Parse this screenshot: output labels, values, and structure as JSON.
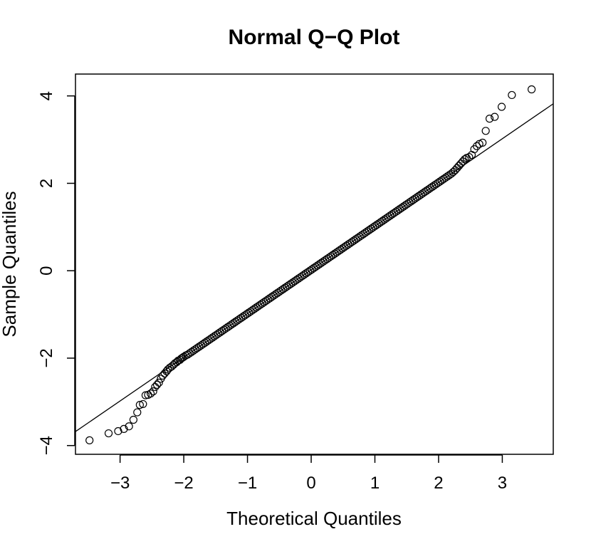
{
  "chart_data": {
    "type": "scatter",
    "title": "Normal Q−Q Plot",
    "xlabel": "Theoretical Quantiles",
    "ylabel": "Sample Quantiles",
    "xlim": [
      -3.7,
      3.8
    ],
    "ylim": [
      -4.2,
      4.5
    ],
    "xticks": [
      -3,
      -2,
      -1,
      0,
      1,
      2,
      3
    ],
    "yticks": [
      -4,
      -2,
      0,
      2,
      4
    ],
    "x_tick_labels": [
      "−3",
      "−2",
      "−1",
      "0",
      "1",
      "2",
      "3"
    ],
    "y_tick_labels": [
      "−4",
      "−2",
      "0",
      "2",
      "4"
    ],
    "grid": false,
    "reference_line": {
      "intercept": 0.02,
      "slope": 1.0
    },
    "marker": "open-circle",
    "series": [
      {
        "points": [
          [
            -3.48,
            -3.88
          ],
          [
            -3.18,
            -3.72
          ],
          [
            -3.03,
            -3.67
          ],
          [
            -2.94,
            -3.62
          ],
          [
            -2.86,
            -3.56
          ],
          [
            -2.79,
            -3.41
          ],
          [
            -2.73,
            -3.24
          ],
          [
            -2.69,
            -3.07
          ],
          [
            -2.64,
            -3.05
          ],
          [
            -2.6,
            -2.85
          ],
          [
            -2.56,
            -2.84
          ],
          [
            -2.52,
            -2.81
          ],
          [
            -2.48,
            -2.76
          ],
          [
            -2.45,
            -2.66
          ],
          [
            -2.42,
            -2.61
          ],
          [
            -2.39,
            -2.56
          ],
          [
            -2.36,
            -2.47
          ],
          [
            -2.33,
            -2.4
          ],
          [
            -2.3,
            -2.35
          ],
          [
            -2.27,
            -2.3
          ],
          [
            -2.25,
            -2.26
          ],
          [
            -2.22,
            -2.22
          ],
          [
            -2.19,
            -2.19
          ],
          [
            -2.16,
            -2.15
          ],
          [
            -2.14,
            -2.12
          ],
          [
            -2.11,
            -2.09
          ],
          [
            -2.09,
            -2.06
          ],
          [
            -2.06,
            -2.04
          ],
          [
            -2.04,
            -2.01
          ],
          [
            -2.02,
            -1.99
          ],
          [
            -2.0,
            -1.97
          ],
          [
            -1.97,
            -1.94
          ],
          [
            -1.94,
            -1.92
          ],
          [
            -1.91,
            -1.89
          ],
          [
            -1.88,
            -1.86
          ],
          [
            -1.85,
            -1.83
          ],
          [
            -1.82,
            -1.8
          ],
          [
            -1.79,
            -1.77
          ],
          [
            -1.76,
            -1.74
          ],
          [
            -1.73,
            -1.71
          ],
          [
            -1.7,
            -1.68
          ],
          [
            -1.67,
            -1.65
          ],
          [
            -1.64,
            -1.62
          ],
          [
            -1.61,
            -1.59
          ],
          [
            -1.58,
            -1.56
          ],
          [
            -1.55,
            -1.53
          ],
          [
            -1.52,
            -1.5
          ],
          [
            -1.49,
            -1.47
          ],
          [
            -1.46,
            -1.44
          ],
          [
            -1.43,
            -1.41
          ],
          [
            -1.4,
            -1.38
          ],
          [
            -1.37,
            -1.35
          ],
          [
            -1.34,
            -1.32
          ],
          [
            -1.31,
            -1.29
          ],
          [
            -1.28,
            -1.26
          ],
          [
            -1.25,
            -1.23
          ],
          [
            -1.22,
            -1.2
          ],
          [
            -1.19,
            -1.17
          ],
          [
            -1.16,
            -1.14
          ],
          [
            -1.13,
            -1.11
          ],
          [
            -1.1,
            -1.08
          ],
          [
            -1.07,
            -1.05
          ],
          [
            -1.04,
            -1.02
          ],
          [
            -1.01,
            -0.99
          ],
          [
            -0.98,
            -0.96
          ],
          [
            -0.95,
            -0.93
          ],
          [
            -0.92,
            -0.9
          ],
          [
            -0.89,
            -0.87
          ],
          [
            -0.86,
            -0.84
          ],
          [
            -0.83,
            -0.81
          ],
          [
            -0.8,
            -0.78
          ],
          [
            -0.77,
            -0.75
          ],
          [
            -0.74,
            -0.72
          ],
          [
            -0.71,
            -0.69
          ],
          [
            -0.68,
            -0.66
          ],
          [
            -0.65,
            -0.63
          ],
          [
            -0.62,
            -0.6
          ],
          [
            -0.59,
            -0.57
          ],
          [
            -0.56,
            -0.54
          ],
          [
            -0.53,
            -0.51
          ],
          [
            -0.5,
            -0.48
          ],
          [
            -0.47,
            -0.45
          ],
          [
            -0.44,
            -0.42
          ],
          [
            -0.41,
            -0.39
          ],
          [
            -0.38,
            -0.36
          ],
          [
            -0.35,
            -0.33
          ],
          [
            -0.32,
            -0.3
          ],
          [
            -0.29,
            -0.27
          ],
          [
            -0.26,
            -0.24
          ],
          [
            -0.23,
            -0.21
          ],
          [
            -0.2,
            -0.18
          ],
          [
            -0.17,
            -0.15
          ],
          [
            -0.14,
            -0.12
          ],
          [
            -0.11,
            -0.09
          ],
          [
            -0.08,
            -0.06
          ],
          [
            -0.05,
            -0.03
          ],
          [
            -0.02,
            0.0
          ],
          [
            0.01,
            0.03
          ],
          [
            0.04,
            0.06
          ],
          [
            0.07,
            0.09
          ],
          [
            0.1,
            0.12
          ],
          [
            0.13,
            0.15
          ],
          [
            0.16,
            0.18
          ],
          [
            0.19,
            0.21
          ],
          [
            0.22,
            0.24
          ],
          [
            0.25,
            0.27
          ],
          [
            0.28,
            0.3
          ],
          [
            0.31,
            0.33
          ],
          [
            0.34,
            0.36
          ],
          [
            0.37,
            0.39
          ],
          [
            0.4,
            0.42
          ],
          [
            0.43,
            0.45
          ],
          [
            0.46,
            0.48
          ],
          [
            0.49,
            0.51
          ],
          [
            0.52,
            0.54
          ],
          [
            0.55,
            0.57
          ],
          [
            0.58,
            0.6
          ],
          [
            0.61,
            0.63
          ],
          [
            0.64,
            0.66
          ],
          [
            0.67,
            0.69
          ],
          [
            0.7,
            0.72
          ],
          [
            0.73,
            0.75
          ],
          [
            0.76,
            0.78
          ],
          [
            0.79,
            0.81
          ],
          [
            0.82,
            0.84
          ],
          [
            0.85,
            0.87
          ],
          [
            0.88,
            0.9
          ],
          [
            0.91,
            0.93
          ],
          [
            0.94,
            0.96
          ],
          [
            0.97,
            0.99
          ],
          [
            1.0,
            1.02
          ],
          [
            1.03,
            1.05
          ],
          [
            1.06,
            1.08
          ],
          [
            1.09,
            1.11
          ],
          [
            1.12,
            1.14
          ],
          [
            1.15,
            1.17
          ],
          [
            1.18,
            1.2
          ],
          [
            1.21,
            1.23
          ],
          [
            1.24,
            1.26
          ],
          [
            1.27,
            1.29
          ],
          [
            1.3,
            1.32
          ],
          [
            1.33,
            1.35
          ],
          [
            1.36,
            1.38
          ],
          [
            1.39,
            1.41
          ],
          [
            1.42,
            1.44
          ],
          [
            1.45,
            1.47
          ],
          [
            1.48,
            1.5
          ],
          [
            1.51,
            1.53
          ],
          [
            1.54,
            1.56
          ],
          [
            1.57,
            1.59
          ],
          [
            1.6,
            1.62
          ],
          [
            1.63,
            1.65
          ],
          [
            1.66,
            1.68
          ],
          [
            1.69,
            1.71
          ],
          [
            1.72,
            1.74
          ],
          [
            1.75,
            1.77
          ],
          [
            1.78,
            1.8
          ],
          [
            1.81,
            1.83
          ],
          [
            1.84,
            1.86
          ],
          [
            1.87,
            1.89
          ],
          [
            1.9,
            1.92
          ],
          [
            1.93,
            1.95
          ],
          [
            1.96,
            1.98
          ],
          [
            1.99,
            2.01
          ],
          [
            2.02,
            2.04
          ],
          [
            2.05,
            2.07
          ],
          [
            2.08,
            2.1
          ],
          [
            2.11,
            2.13
          ],
          [
            2.14,
            2.16
          ],
          [
            2.17,
            2.19
          ],
          [
            2.2,
            2.22
          ],
          [
            2.23,
            2.26
          ],
          [
            2.26,
            2.3
          ],
          [
            2.29,
            2.35
          ],
          [
            2.32,
            2.4
          ],
          [
            2.35,
            2.45
          ],
          [
            2.38,
            2.5
          ],
          [
            2.41,
            2.55
          ],
          [
            2.44,
            2.58
          ],
          [
            2.48,
            2.6
          ],
          [
            2.52,
            2.65
          ],
          [
            2.56,
            2.78
          ],
          [
            2.6,
            2.85
          ],
          [
            2.64,
            2.9
          ],
          [
            2.69,
            2.93
          ],
          [
            2.74,
            3.2
          ],
          [
            2.8,
            3.48
          ],
          [
            2.88,
            3.52
          ],
          [
            2.99,
            3.75
          ],
          [
            3.15,
            4.02
          ],
          [
            3.46,
            4.15
          ]
        ]
      }
    ]
  }
}
